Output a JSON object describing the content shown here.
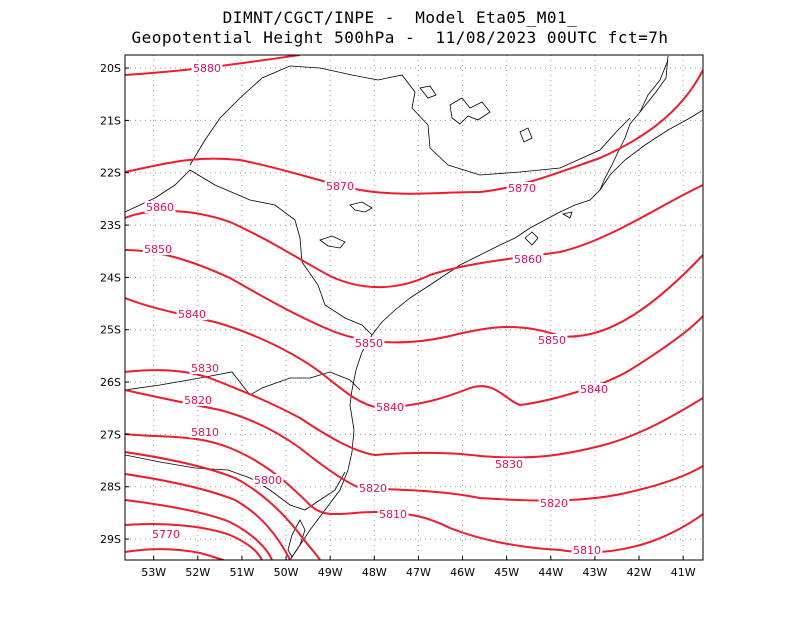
{
  "title": {
    "line1": "DIMNT/CGCT/INPE -  Model Eta05_M01_",
    "line2": "Geopotential Height 500hPa -  11/08/2023 00UTC fct=7h"
  },
  "map": {
    "lon_range": [
      -53.65,
      -40.55
    ],
    "lat_range": [
      -29.4,
      -19.75
    ],
    "x_ticks": [
      "53W",
      "52W",
      "51W",
      "50W",
      "49W",
      "48W",
      "47W",
      "46W",
      "45W",
      "44W",
      "43W",
      "42W",
      "41W"
    ],
    "y_ticks": [
      "20S",
      "21S",
      "22S",
      "23S",
      "24S",
      "25S",
      "26S",
      "27S",
      "28S",
      "29S"
    ],
    "colors": {
      "contour_main": "#ee1c2c",
      "contour_label": "#e0105a",
      "coast": "#000000",
      "grid": "#9a9a9a"
    },
    "contour_labels": [
      "5880",
      "5870",
      "5870",
      "5860",
      "5850",
      "5860",
      "5840",
      "5850",
      "5850",
      "5830",
      "5840",
      "5840",
      "5820",
      "5810",
      "5830",
      "5800",
      "5820",
      "5820",
      "5810",
      "5770",
      "5810"
    ]
  }
}
